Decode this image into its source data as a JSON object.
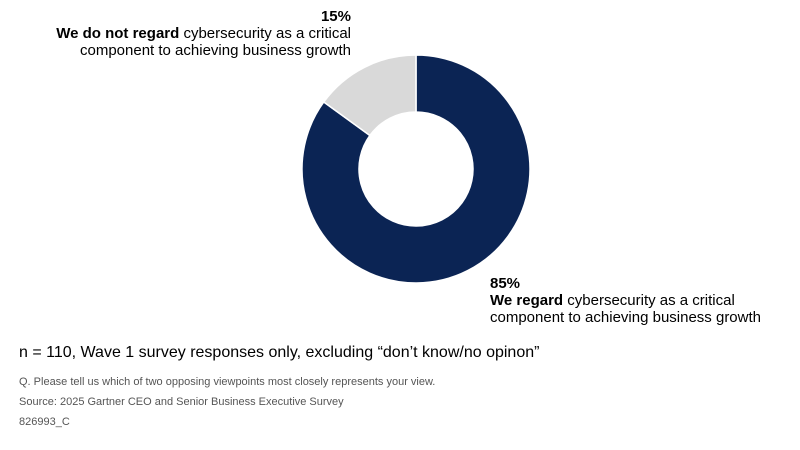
{
  "chart_data": {
    "type": "pie",
    "donut": true,
    "slices": [
      {
        "label": "We regard cybersecurity as a critical component to achieving business growth",
        "value": 85,
        "color": "#0b2454"
      },
      {
        "label": "We do not regard cybersecurity as a critical component to achieving business growth",
        "value": 15,
        "color": "#d9d9d9"
      }
    ],
    "data_labels": [
      "85%",
      "15%"
    ],
    "legend": "none"
  },
  "callouts": {
    "minor": {
      "percent": "15%",
      "bold": "We do not regard",
      "rest": " cybersecurity as a critical",
      "line2": "component to achieving business growth"
    },
    "major": {
      "percent": "85%",
      "bold": "We regard",
      "rest": " cybersecurity as a critical",
      "line2": "component to achieving business growth"
    }
  },
  "footer": {
    "note": "n = 110, Wave 1 survey responses only, excluding “don’t know/no opinon”",
    "question": "Q. Please tell us which of two opposing viewpoints most closely represents your view.",
    "source": "Source: 2025 Gartner CEO and Senior Business Executive Survey",
    "code": "826993_C"
  }
}
